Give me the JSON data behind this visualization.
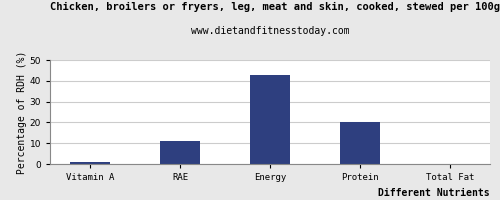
{
  "categories": [
    "Vitamin A",
    "RAE",
    "Energy",
    "Protein",
    "Total Fat"
  ],
  "values": [
    1,
    11,
    43,
    20,
    0
  ],
  "bar_color": "#2e3f7f",
  "title": "Chicken, broilers or fryers, leg, meat and skin, cooked, stewed per 100g",
  "subtitle": "www.dietandfitnesstoday.com",
  "ylabel": "Percentage of RDH (%)",
  "xlabel": "Different Nutrients",
  "ylim": [
    0,
    50
  ],
  "yticks": [
    0,
    10,
    20,
    30,
    40,
    50
  ],
  "title_fontsize": 7.5,
  "subtitle_fontsize": 7.0,
  "axis_label_fontsize": 7.0,
  "tick_fontsize": 6.5,
  "bar_width": 0.45,
  "background_color": "#e8e8e8",
  "plot_bg_color": "#ffffff",
  "grid_color": "#cccccc"
}
